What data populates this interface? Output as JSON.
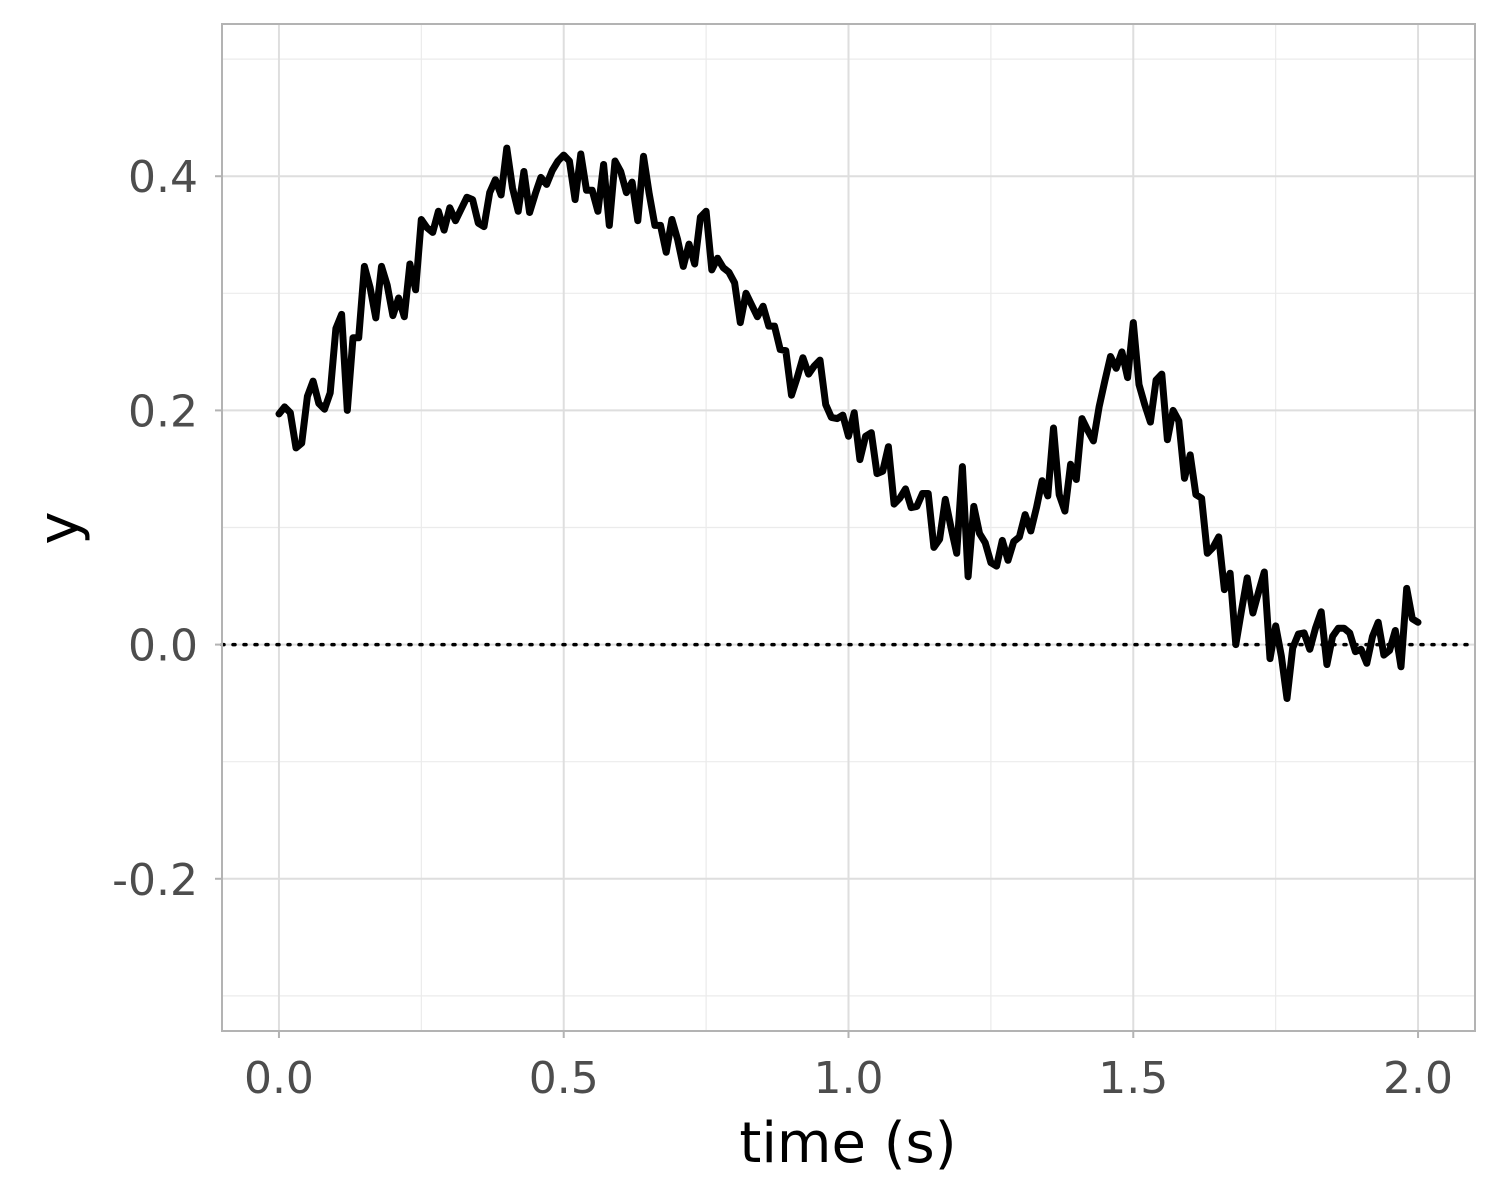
{
  "chart_data": {
    "type": "line",
    "title": "",
    "xlabel": "time (s)",
    "ylabel": "y",
    "xlim": [
      -0.1,
      2.1
    ],
    "ylim": [
      -0.33,
      0.53
    ],
    "x_ticks": [
      0.0,
      0.5,
      1.0,
      1.5,
      2.0
    ],
    "x_tick_labels": [
      "0.0",
      "0.5",
      "1.0",
      "1.5",
      "2.0"
    ],
    "y_ticks": [
      -0.2,
      0.0,
      0.2,
      0.4
    ],
    "y_tick_labels": [
      "-0.2",
      "0.0",
      "0.2",
      "0.4"
    ],
    "grid": true,
    "reference_line": {
      "y": 0.0,
      "style": "dotted",
      "color": "#000000"
    },
    "series": [
      {
        "color": "#000000",
        "points": [
          [
            0.0,
            0.197
          ],
          [
            0.01,
            0.203
          ],
          [
            0.02,
            0.198
          ],
          [
            0.03,
            0.168
          ],
          [
            0.04,
            0.172
          ],
          [
            0.05,
            0.212
          ],
          [
            0.06,
            0.225
          ],
          [
            0.07,
            0.206
          ],
          [
            0.08,
            0.201
          ],
          [
            0.09,
            0.215
          ],
          [
            0.1,
            0.27
          ],
          [
            0.11,
            0.282
          ],
          [
            0.12,
            0.2
          ],
          [
            0.13,
            0.262
          ],
          [
            0.14,
            0.262
          ],
          [
            0.15,
            0.323
          ],
          [
            0.16,
            0.305
          ],
          [
            0.17,
            0.279
          ],
          [
            0.18,
            0.323
          ],
          [
            0.19,
            0.307
          ],
          [
            0.2,
            0.281
          ],
          [
            0.21,
            0.296
          ],
          [
            0.22,
            0.28
          ],
          [
            0.23,
            0.325
          ],
          [
            0.24,
            0.303
          ],
          [
            0.25,
            0.363
          ],
          [
            0.26,
            0.356
          ],
          [
            0.27,
            0.352
          ],
          [
            0.28,
            0.37
          ],
          [
            0.29,
            0.354
          ],
          [
            0.3,
            0.373
          ],
          [
            0.31,
            0.362
          ],
          [
            0.32,
            0.372
          ],
          [
            0.33,
            0.382
          ],
          [
            0.34,
            0.38
          ],
          [
            0.35,
            0.36
          ],
          [
            0.36,
            0.357
          ],
          [
            0.37,
            0.386
          ],
          [
            0.38,
            0.397
          ],
          [
            0.39,
            0.384
          ],
          [
            0.4,
            0.424
          ],
          [
            0.41,
            0.39
          ],
          [
            0.42,
            0.37
          ],
          [
            0.43,
            0.404
          ],
          [
            0.44,
            0.369
          ],
          [
            0.45,
            0.385
          ],
          [
            0.46,
            0.399
          ],
          [
            0.47,
            0.393
          ],
          [
            0.48,
            0.405
          ],
          [
            0.49,
            0.413
          ],
          [
            0.5,
            0.418
          ],
          [
            0.51,
            0.413
          ],
          [
            0.52,
            0.38
          ],
          [
            0.53,
            0.419
          ],
          [
            0.54,
            0.388
          ],
          [
            0.55,
            0.388
          ],
          [
            0.56,
            0.37
          ],
          [
            0.57,
            0.41
          ],
          [
            0.58,
            0.358
          ],
          [
            0.59,
            0.413
          ],
          [
            0.6,
            0.404
          ],
          [
            0.61,
            0.386
          ],
          [
            0.62,
            0.395
          ],
          [
            0.63,
            0.362
          ],
          [
            0.64,
            0.417
          ],
          [
            0.65,
            0.385
          ],
          [
            0.66,
            0.358
          ],
          [
            0.67,
            0.358
          ],
          [
            0.68,
            0.335
          ],
          [
            0.69,
            0.363
          ],
          [
            0.7,
            0.346
          ],
          [
            0.71,
            0.323
          ],
          [
            0.72,
            0.342
          ],
          [
            0.73,
            0.325
          ],
          [
            0.74,
            0.365
          ],
          [
            0.75,
            0.37
          ],
          [
            0.76,
            0.32
          ],
          [
            0.77,
            0.33
          ],
          [
            0.78,
            0.322
          ],
          [
            0.79,
            0.318
          ],
          [
            0.8,
            0.309
          ],
          [
            0.81,
            0.275
          ],
          [
            0.82,
            0.3
          ],
          [
            0.83,
            0.29
          ],
          [
            0.84,
            0.28
          ],
          [
            0.85,
            0.289
          ],
          [
            0.86,
            0.272
          ],
          [
            0.87,
            0.272
          ],
          [
            0.88,
            0.252
          ],
          [
            0.89,
            0.251
          ],
          [
            0.9,
            0.213
          ],
          [
            0.91,
            0.228
          ],
          [
            0.92,
            0.245
          ],
          [
            0.93,
            0.231
          ],
          [
            0.94,
            0.238
          ],
          [
            0.95,
            0.243
          ],
          [
            0.96,
            0.205
          ],
          [
            0.97,
            0.194
          ],
          [
            0.98,
            0.193
          ],
          [
            0.99,
            0.196
          ],
          [
            1.0,
            0.178
          ],
          [
            1.01,
            0.198
          ],
          [
            1.02,
            0.158
          ],
          [
            1.03,
            0.178
          ],
          [
            1.04,
            0.181
          ],
          [
            1.05,
            0.146
          ],
          [
            1.06,
            0.148
          ],
          [
            1.07,
            0.169
          ],
          [
            1.08,
            0.12
          ],
          [
            1.09,
            0.125
          ],
          [
            1.1,
            0.133
          ],
          [
            1.11,
            0.117
          ],
          [
            1.12,
            0.118
          ],
          [
            1.13,
            0.129
          ],
          [
            1.14,
            0.129
          ],
          [
            1.15,
            0.083
          ],
          [
            1.16,
            0.09
          ],
          [
            1.17,
            0.124
          ],
          [
            1.18,
            0.1
          ],
          [
            1.19,
            0.078
          ],
          [
            1.2,
            0.152
          ],
          [
            1.21,
            0.058
          ],
          [
            1.22,
            0.118
          ],
          [
            1.23,
            0.095
          ],
          [
            1.24,
            0.087
          ],
          [
            1.25,
            0.07
          ],
          [
            1.26,
            0.067
          ],
          [
            1.27,
            0.089
          ],
          [
            1.28,
            0.072
          ],
          [
            1.29,
            0.088
          ],
          [
            1.3,
            0.092
          ],
          [
            1.31,
            0.111
          ],
          [
            1.32,
            0.097
          ],
          [
            1.33,
            0.117
          ],
          [
            1.34,
            0.14
          ],
          [
            1.35,
            0.127
          ],
          [
            1.36,
            0.185
          ],
          [
            1.37,
            0.128
          ],
          [
            1.38,
            0.114
          ],
          [
            1.39,
            0.154
          ],
          [
            1.4,
            0.141
          ],
          [
            1.41,
            0.193
          ],
          [
            1.42,
            0.183
          ],
          [
            1.43,
            0.174
          ],
          [
            1.44,
            0.203
          ],
          [
            1.45,
            0.225
          ],
          [
            1.46,
            0.246
          ],
          [
            1.47,
            0.236
          ],
          [
            1.48,
            0.25
          ],
          [
            1.49,
            0.228
          ],
          [
            1.5,
            0.275
          ],
          [
            1.51,
            0.222
          ],
          [
            1.52,
            0.205
          ],
          [
            1.53,
            0.19
          ],
          [
            1.54,
            0.226
          ],
          [
            1.55,
            0.231
          ],
          [
            1.56,
            0.175
          ],
          [
            1.57,
            0.2
          ],
          [
            1.58,
            0.191
          ],
          [
            1.59,
            0.142
          ],
          [
            1.6,
            0.162
          ],
          [
            1.61,
            0.128
          ],
          [
            1.62,
            0.125
          ],
          [
            1.63,
            0.078
          ],
          [
            1.64,
            0.083
          ],
          [
            1.65,
            0.092
          ],
          [
            1.66,
            0.047
          ],
          [
            1.67,
            0.061
          ],
          [
            1.68,
            0.0
          ],
          [
            1.69,
            0.029
          ],
          [
            1.7,
            0.057
          ],
          [
            1.71,
            0.027
          ],
          [
            1.72,
            0.045
          ],
          [
            1.73,
            0.062
          ],
          [
            1.74,
            -0.012
          ],
          [
            1.75,
            0.016
          ],
          [
            1.76,
            -0.01
          ],
          [
            1.77,
            -0.046
          ],
          [
            1.78,
            -0.003
          ],
          [
            1.79,
            0.009
          ],
          [
            1.8,
            0.01
          ],
          [
            1.81,
            -0.004
          ],
          [
            1.82,
            0.014
          ],
          [
            1.83,
            0.028
          ],
          [
            1.84,
            -0.017
          ],
          [
            1.85,
            0.007
          ],
          [
            1.86,
            0.014
          ],
          [
            1.87,
            0.014
          ],
          [
            1.88,
            0.01
          ],
          [
            1.89,
            -0.006
          ],
          [
            1.9,
            -0.004
          ],
          [
            1.91,
            -0.016
          ],
          [
            1.92,
            0.007
          ],
          [
            1.93,
            0.019
          ],
          [
            1.94,
            -0.009
          ],
          [
            1.95,
            -0.005
          ],
          [
            1.96,
            0.012
          ],
          [
            1.97,
            -0.019
          ],
          [
            1.98,
            0.048
          ],
          [
            1.99,
            0.022
          ],
          [
            2.0,
            0.019
          ]
        ]
      }
    ]
  }
}
